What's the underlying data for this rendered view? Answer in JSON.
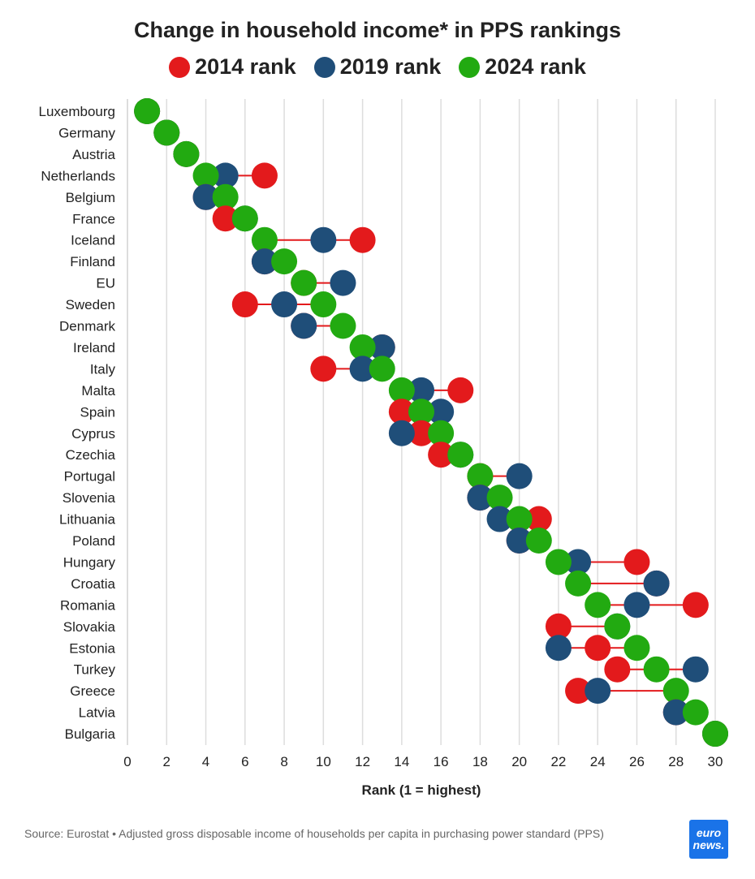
{
  "chart_data": {
    "type": "scatter",
    "subtype": "dumbbell",
    "title": "Change in household income* in PPS rankings",
    "xlabel": "Rank (1 = highest)",
    "ylabel": "",
    "xlim": [
      0,
      30
    ],
    "xticks": [
      0,
      2,
      4,
      6,
      8,
      10,
      12,
      14,
      16,
      18,
      20,
      22,
      24,
      26,
      28,
      30
    ],
    "grid": true,
    "legend_position": "top",
    "series": [
      {
        "name": "2014 rank",
        "color": "#e31a1c"
      },
      {
        "name": "2019 rank",
        "color": "#1f4e79"
      },
      {
        "name": "2024 rank",
        "color": "#22aa11"
      }
    ],
    "connector_color": "#e31a1c",
    "categories": [
      "Luxembourg",
      "Germany",
      "Austria",
      "Netherlands",
      "Belgium",
      "France",
      "Iceland",
      "Finland",
      "EU",
      "Sweden",
      "Denmark",
      "Ireland",
      "Italy",
      "Malta",
      "Spain",
      "Cyprus",
      "Czechia",
      "Portugal",
      "Slovenia",
      "Lithuania",
      "Poland",
      "Hungary",
      "Croatia",
      "Romania",
      "Slovakia",
      "Estonia",
      "Turkey",
      "Greece",
      "Latvia",
      "Bulgaria"
    ],
    "rows": [
      {
        "country": "Luxembourg",
        "r2014": 1,
        "r2019": 1,
        "r2024": 1
      },
      {
        "country": "Germany",
        "r2014": 2,
        "r2019": 2,
        "r2024": 2
      },
      {
        "country": "Austria",
        "r2014": 3,
        "r2019": 3,
        "r2024": 3
      },
      {
        "country": "Netherlands",
        "r2014": 7,
        "r2019": 5,
        "r2024": 4
      },
      {
        "country": "Belgium",
        "r2014": 4,
        "r2019": 4,
        "r2024": 5
      },
      {
        "country": "France",
        "r2014": 5,
        "r2019": 6,
        "r2024": 6
      },
      {
        "country": "Iceland",
        "r2014": 12,
        "r2019": 10,
        "r2024": 7
      },
      {
        "country": "Finland",
        "r2014": 7,
        "r2019": 7,
        "r2024": 8
      },
      {
        "country": "EU",
        "r2014": 9,
        "r2019": 11,
        "r2024": 9
      },
      {
        "country": "Sweden",
        "r2014": 6,
        "r2019": 8,
        "r2024": 10
      },
      {
        "country": "Denmark",
        "r2014": 9,
        "r2019": 9,
        "r2024": 11
      },
      {
        "country": "Ireland",
        "r2014": 13,
        "r2019": 13,
        "r2024": 12
      },
      {
        "country": "Italy",
        "r2014": 10,
        "r2019": 12,
        "r2024": 13
      },
      {
        "country": "Malta",
        "r2014": 17,
        "r2019": 15,
        "r2024": 14
      },
      {
        "country": "Spain",
        "r2014": 14,
        "r2019": 16,
        "r2024": 15
      },
      {
        "country": "Cyprus",
        "r2014": 15,
        "r2019": 14,
        "r2024": 16
      },
      {
        "country": "Czechia",
        "r2014": 16,
        "r2019": 17,
        "r2024": 17
      },
      {
        "country": "Portugal",
        "r2014": 18,
        "r2019": 20,
        "r2024": 18
      },
      {
        "country": "Slovenia",
        "r2014": 18,
        "r2019": 18,
        "r2024": 19
      },
      {
        "country": "Lithuania",
        "r2014": 21,
        "r2019": 19,
        "r2024": 20
      },
      {
        "country": "Poland",
        "r2014": 20,
        "r2019": 20,
        "r2024": 21
      },
      {
        "country": "Hungary",
        "r2014": 26,
        "r2019": 23,
        "r2024": 22
      },
      {
        "country": "Croatia",
        "r2014": 27,
        "r2019": 27,
        "r2024": 23
      },
      {
        "country": "Romania",
        "r2014": 29,
        "r2019": 26,
        "r2024": 24
      },
      {
        "country": "Slovakia",
        "r2014": 22,
        "r2019": 25,
        "r2024": 25
      },
      {
        "country": "Estonia",
        "r2014": 24,
        "r2019": 22,
        "r2024": 26
      },
      {
        "country": "Turkey",
        "r2014": 25,
        "r2019": 29,
        "r2024": 27
      },
      {
        "country": "Greece",
        "r2014": 23,
        "r2019": 24,
        "r2024": 28
      },
      {
        "country": "Latvia",
        "r2014": 28,
        "r2019": 28,
        "r2024": 29
      },
      {
        "country": "Bulgaria",
        "r2014": 30,
        "r2019": 30,
        "r2024": 30
      }
    ]
  },
  "legend": {
    "item_2014": "2014 rank",
    "item_2019": "2019 rank",
    "item_2024": "2024 rank"
  },
  "footer": {
    "source": "Source: Eurostat • Adjusted gross disposable income of households per capita in purchasing power standard (PPS)",
    "logo_line1": "euro",
    "logo_line2": "news."
  }
}
